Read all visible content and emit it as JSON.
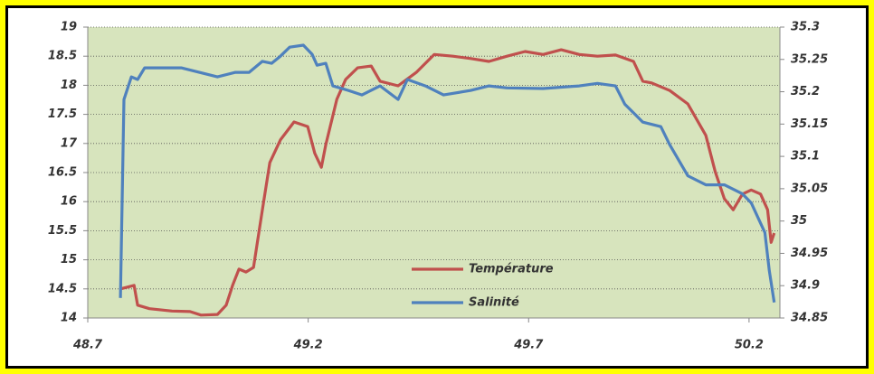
{
  "chart_data": {
    "type": "line",
    "xlim": [
      48.7,
      50.27
    ],
    "xticks": [
      48.7,
      49.2,
      49.7,
      50.2
    ],
    "ylim": [
      14,
      19
    ],
    "yticks": [
      14,
      14.5,
      15,
      15.5,
      16,
      16.5,
      17,
      17.5,
      18,
      18.5,
      19
    ],
    "y2lim": [
      34.85,
      35.3
    ],
    "y2ticks": [
      34.85,
      34.9,
      34.95,
      35,
      35.05,
      35.1,
      35.15,
      35.2,
      35.25,
      35.3
    ],
    "grid": true,
    "legend": "lower center",
    "series": [
      {
        "name": "Température",
        "color": "#c0504d",
        "x": [
          48.774,
          48.805,
          48.813,
          48.84,
          48.891,
          48.932,
          48.957,
          48.994,
          49.014,
          49.029,
          49.043,
          49.059,
          49.076,
          49.096,
          49.113,
          49.137,
          49.168,
          49.199,
          49.215,
          49.23,
          49.24,
          49.265,
          49.285,
          49.312,
          49.343,
          49.363,
          49.404,
          49.445,
          49.486,
          49.528,
          49.569,
          49.61,
          49.651,
          49.692,
          49.733,
          49.774,
          49.815,
          49.856,
          49.897,
          49.938,
          49.959,
          49.979,
          50.02,
          50.061,
          50.102,
          50.123,
          50.144,
          50.164,
          50.185,
          50.205,
          50.226,
          50.242,
          50.25,
          50.257
        ],
        "values": [
          14.5,
          14.56,
          14.22,
          14.16,
          14.12,
          14.11,
          14.05,
          14.06,
          14.22,
          14.57,
          14.84,
          14.79,
          14.87,
          15.86,
          16.67,
          17.06,
          17.37,
          17.29,
          16.83,
          16.59,
          16.98,
          17.76,
          18.1,
          18.3,
          18.33,
          18.07,
          17.99,
          18.22,
          18.53,
          18.5,
          18.46,
          18.41,
          18.5,
          18.58,
          18.53,
          18.61,
          18.53,
          18.5,
          18.52,
          18.41,
          18.07,
          18.04,
          17.91,
          17.68,
          17.14,
          16.52,
          16.05,
          15.86,
          16.13,
          16.2,
          16.13,
          15.86,
          15.3,
          15.46
        ]
      },
      {
        "name": "Salinité",
        "color": "#4f81bd",
        "axis": "y2",
        "x": [
          48.774,
          48.782,
          48.799,
          48.813,
          48.829,
          48.912,
          48.994,
          49.035,
          49.066,
          49.096,
          49.117,
          49.137,
          49.158,
          49.189,
          49.209,
          49.22,
          49.24,
          49.256,
          49.291,
          49.322,
          49.363,
          49.404,
          49.425,
          49.466,
          49.507,
          49.569,
          49.61,
          49.651,
          49.733,
          49.815,
          49.856,
          49.897,
          49.918,
          49.959,
          50.0,
          50.02,
          50.061,
          50.102,
          50.144,
          50.185,
          50.205,
          50.236,
          50.246,
          50.257
        ],
        "values": [
          34.881,
          35.188,
          35.223,
          35.219,
          35.237,
          35.237,
          35.223,
          35.23,
          35.23,
          35.247,
          35.244,
          35.255,
          35.269,
          35.272,
          35.258,
          35.241,
          35.244,
          35.209,
          35.202,
          35.195,
          35.209,
          35.188,
          35.219,
          35.209,
          35.195,
          35.202,
          35.209,
          35.206,
          35.205,
          35.209,
          35.213,
          35.209,
          35.181,
          35.153,
          35.146,
          35.118,
          35.07,
          35.056,
          35.056,
          35.042,
          35.028,
          34.982,
          34.923,
          34.874
        ]
      }
    ]
  }
}
